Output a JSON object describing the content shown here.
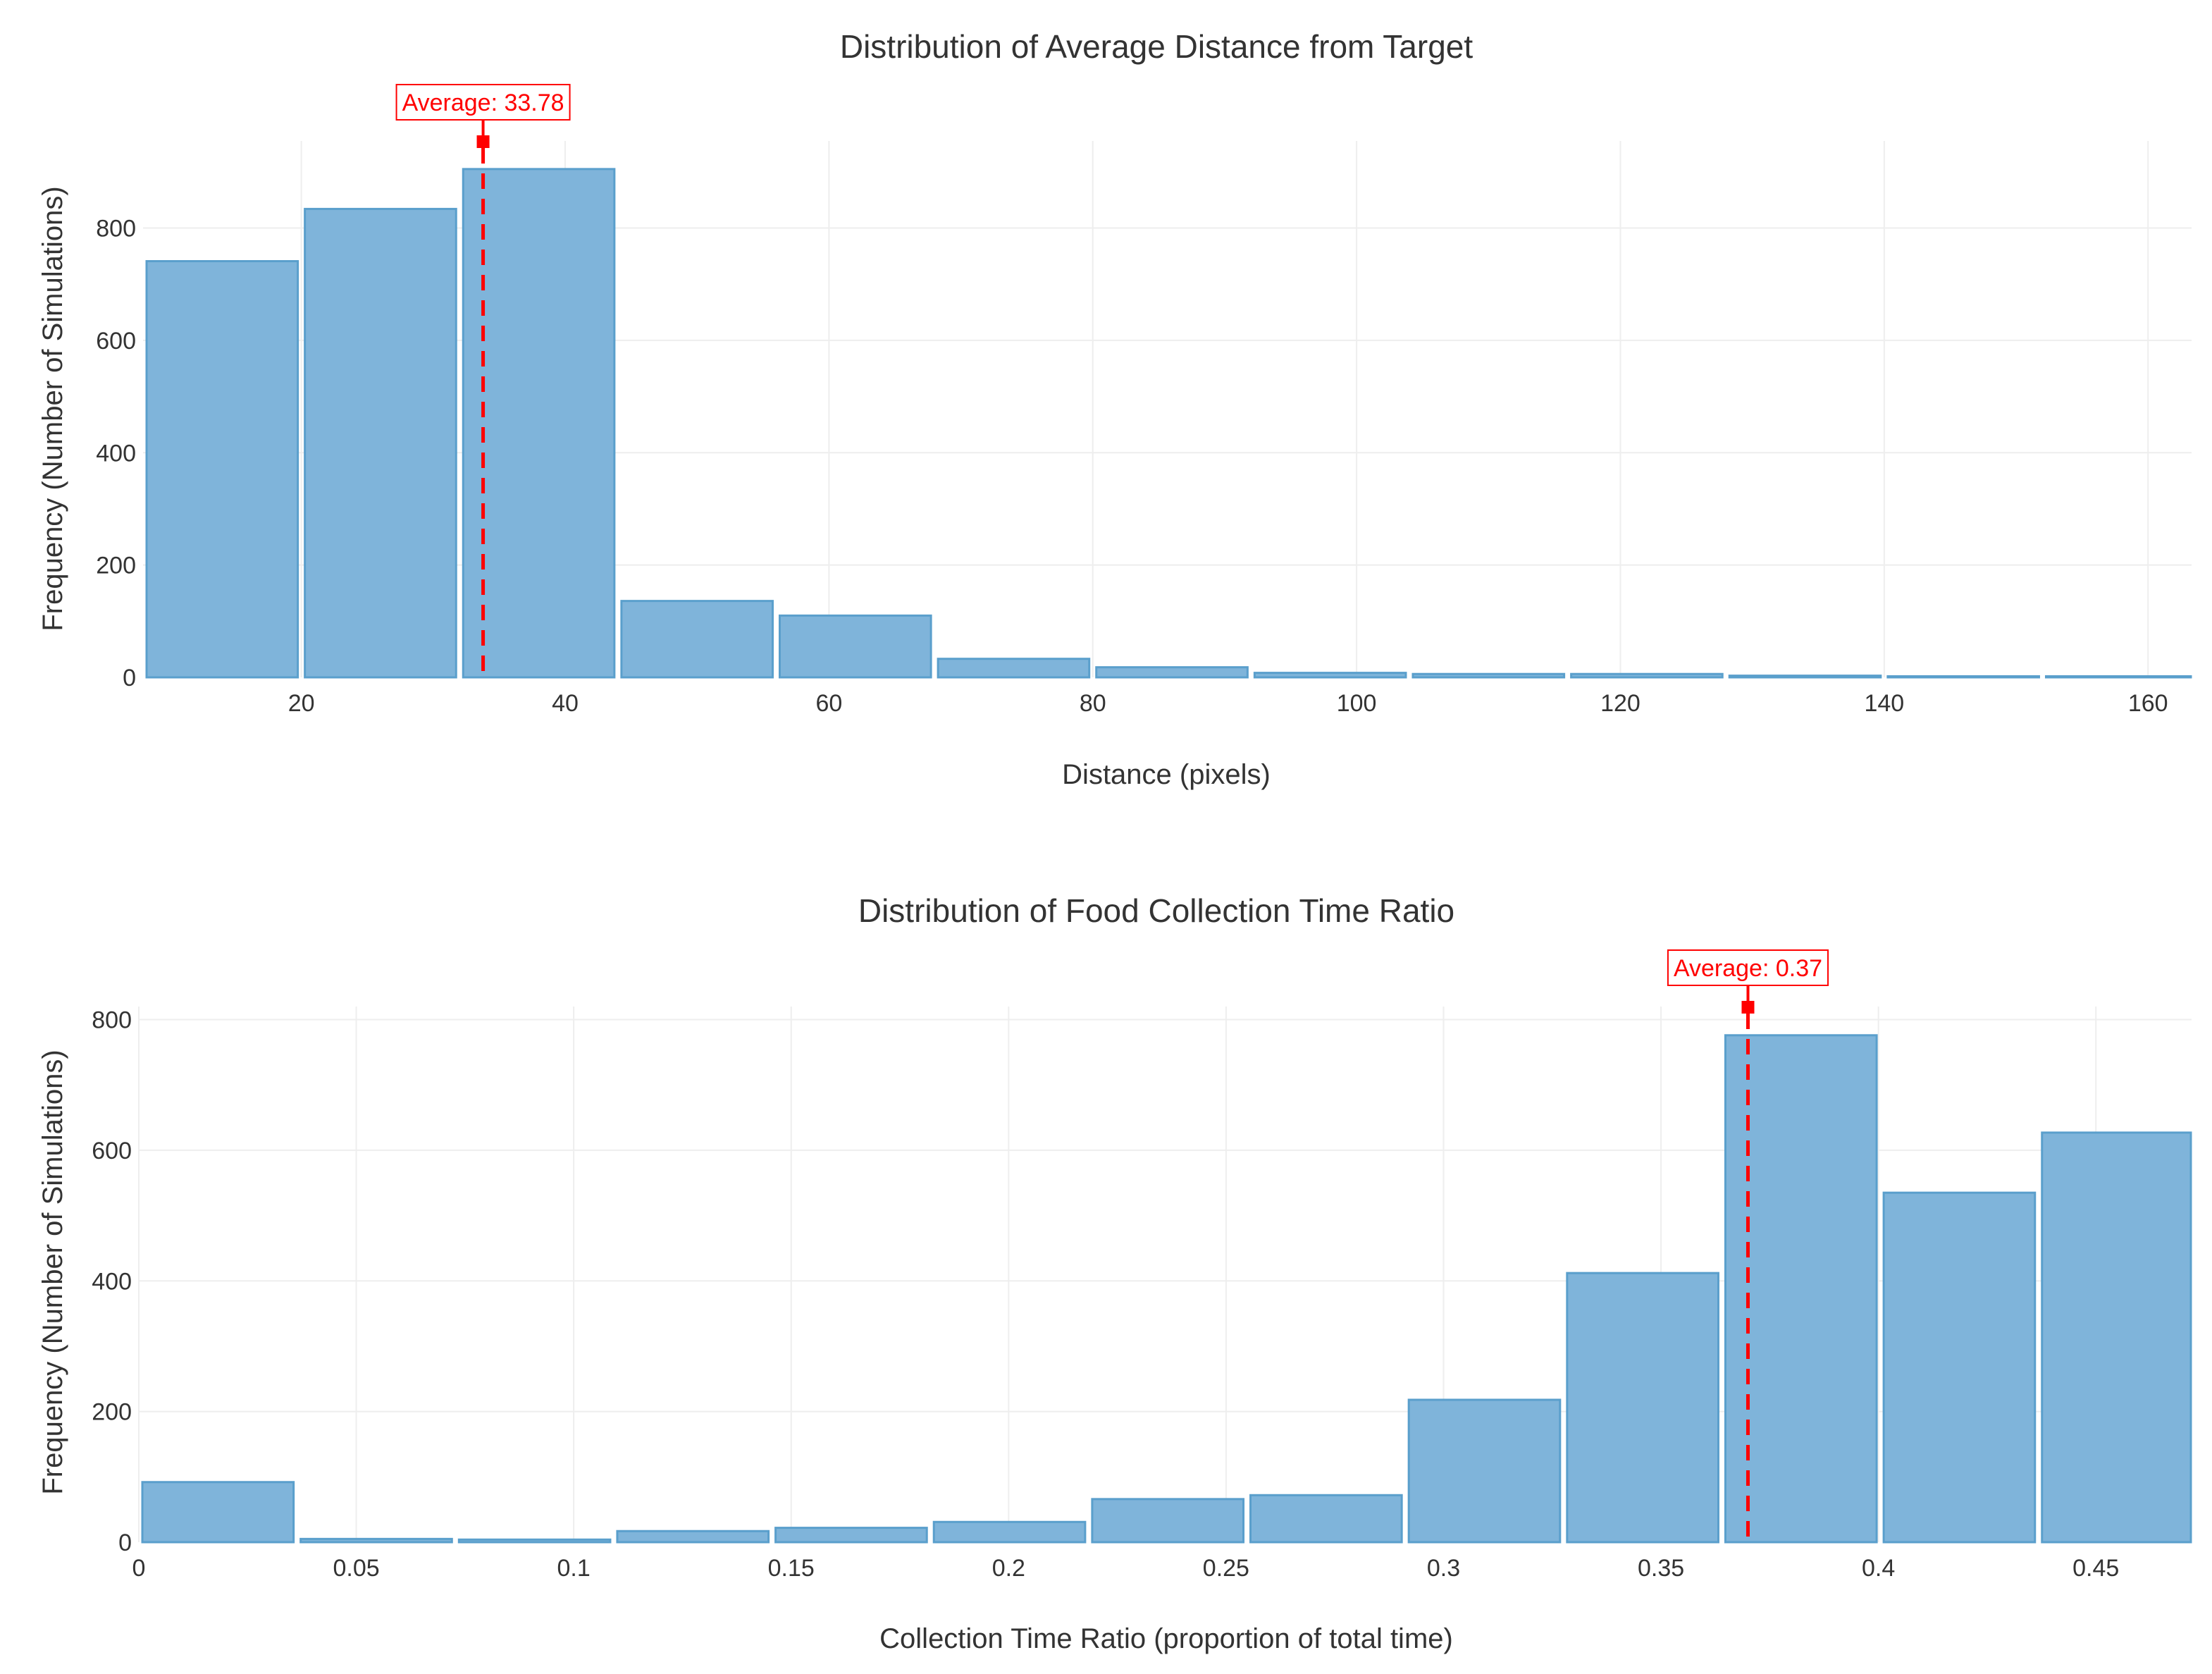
{
  "chart_data": [
    {
      "type": "bar",
      "title": "Distribution of Average Distance from Target",
      "xlabel": "Distance (pixels)",
      "ylabel": "Frequency (Number of Simulations)",
      "bins": [
        {
          "start": 8,
          "end": 20,
          "value": 741
        },
        {
          "start": 20,
          "end": 32,
          "value": 834
        },
        {
          "start": 32,
          "end": 44,
          "value": 905
        },
        {
          "start": 44,
          "end": 56,
          "value": 136
        },
        {
          "start": 56,
          "end": 68,
          "value": 110
        },
        {
          "start": 68,
          "end": 80,
          "value": 33
        },
        {
          "start": 80,
          "end": 92,
          "value": 18
        },
        {
          "start": 92,
          "end": 104,
          "value": 8
        },
        {
          "start": 104,
          "end": 116,
          "value": 6
        },
        {
          "start": 116,
          "end": 128,
          "value": 6
        },
        {
          "start": 128,
          "end": 140,
          "value": 3
        },
        {
          "start": 140,
          "end": 152,
          "value": 1
        },
        {
          "start": 152,
          "end": 164,
          "value": 1
        }
      ],
      "xlim": [
        8,
        163.3
      ],
      "ylim": [
        0,
        955
      ],
      "xticks": [
        20,
        40,
        60,
        80,
        100,
        120,
        140,
        160
      ],
      "xtick_labels": [
        "20",
        "40",
        "60",
        "80",
        "100",
        "120",
        "140",
        "160"
      ],
      "yticks": [
        0,
        200,
        400,
        600,
        800
      ],
      "ytick_labels": [
        "0",
        "200",
        "400",
        "600",
        "800"
      ],
      "average": 33.78,
      "average_label": "Average: 33.78",
      "grid": true
    },
    {
      "type": "bar",
      "title": "Distribution of Food Collection Time Ratio",
      "xlabel": "Collection Time Ratio (proportion of total time)",
      "ylabel": "Frequency (Number of Simulations)",
      "bins": [
        {
          "start": 0.0,
          "end": 0.0364,
          "value": 92
        },
        {
          "start": 0.0364,
          "end": 0.0728,
          "value": 5
        },
        {
          "start": 0.0728,
          "end": 0.1092,
          "value": 4
        },
        {
          "start": 0.1092,
          "end": 0.1456,
          "value": 17
        },
        {
          "start": 0.1456,
          "end": 0.182,
          "value": 22
        },
        {
          "start": 0.182,
          "end": 0.2184,
          "value": 31
        },
        {
          "start": 0.2184,
          "end": 0.2548,
          "value": 66
        },
        {
          "start": 0.2548,
          "end": 0.2912,
          "value": 72
        },
        {
          "start": 0.2912,
          "end": 0.3276,
          "value": 218
        },
        {
          "start": 0.3276,
          "end": 0.364,
          "value": 412
        },
        {
          "start": 0.364,
          "end": 0.4004,
          "value": 776
        },
        {
          "start": 0.4004,
          "end": 0.4368,
          "value": 535
        },
        {
          "start": 0.4368,
          "end": 0.4732,
          "value": 627
        }
      ],
      "xlim": [
        0,
        0.472
      ],
      "ylim": [
        0,
        820
      ],
      "xticks": [
        0,
        0.05,
        0.1,
        0.15,
        0.2,
        0.25,
        0.3,
        0.35,
        0.4,
        0.45
      ],
      "xtick_labels": [
        "0",
        "0.05",
        "0.1",
        "0.15",
        "0.2",
        "0.25",
        "0.3",
        "0.35",
        "0.4",
        "0.45"
      ],
      "yticks": [
        0,
        200,
        400,
        600,
        800
      ],
      "ytick_labels": [
        "0",
        "200",
        "400",
        "600",
        "800"
      ],
      "average": 0.37,
      "average_label": "Average: 0.37",
      "grid": true
    }
  ]
}
